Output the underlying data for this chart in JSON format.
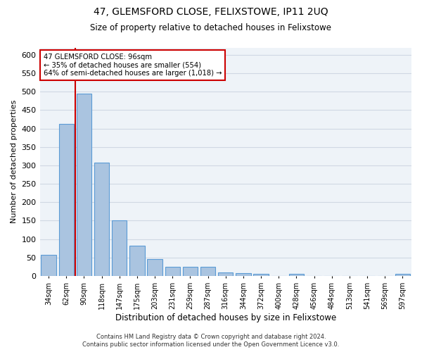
{
  "title": "47, GLEMSFORD CLOSE, FELIXSTOWE, IP11 2UQ",
  "subtitle": "Size of property relative to detached houses in Felixstowe",
  "xlabel": "Distribution of detached houses by size in Felixstowe",
  "ylabel": "Number of detached properties",
  "categories": [
    "34sqm",
    "62sqm",
    "90sqm",
    "118sqm",
    "147sqm",
    "175sqm",
    "203sqm",
    "231sqm",
    "259sqm",
    "287sqm",
    "316sqm",
    "344sqm",
    "372sqm",
    "400sqm",
    "428sqm",
    "456sqm",
    "484sqm",
    "513sqm",
    "541sqm",
    "569sqm",
    "597sqm"
  ],
  "values": [
    58,
    413,
    495,
    307,
    150,
    82,
    45,
    25,
    25,
    25,
    10,
    8,
    5,
    0,
    5,
    0,
    0,
    0,
    0,
    0,
    5
  ],
  "bar_color": "#aac4e0",
  "bar_edgecolor": "#5b9bd5",
  "property_line_label": "47 GLEMSFORD CLOSE: 96sqm",
  "annotation_line1": "← 35% of detached houses are smaller (554)",
  "annotation_line2": "64% of semi-detached houses are larger (1,018) →",
  "annotation_box_color": "#ffffff",
  "annotation_box_edgecolor": "#cc0000",
  "vline_color": "#cc0000",
  "vline_x": 1.5,
  "ylim": [
    0,
    620
  ],
  "yticks": [
    0,
    50,
    100,
    150,
    200,
    250,
    300,
    350,
    400,
    450,
    500,
    550,
    600
  ],
  "background_color": "#eef3f8",
  "grid_color": "#d0d8e4",
  "footer_line1": "Contains HM Land Registry data © Crown copyright and database right 2024.",
  "footer_line2": "Contains public sector information licensed under the Open Government Licence v3.0."
}
